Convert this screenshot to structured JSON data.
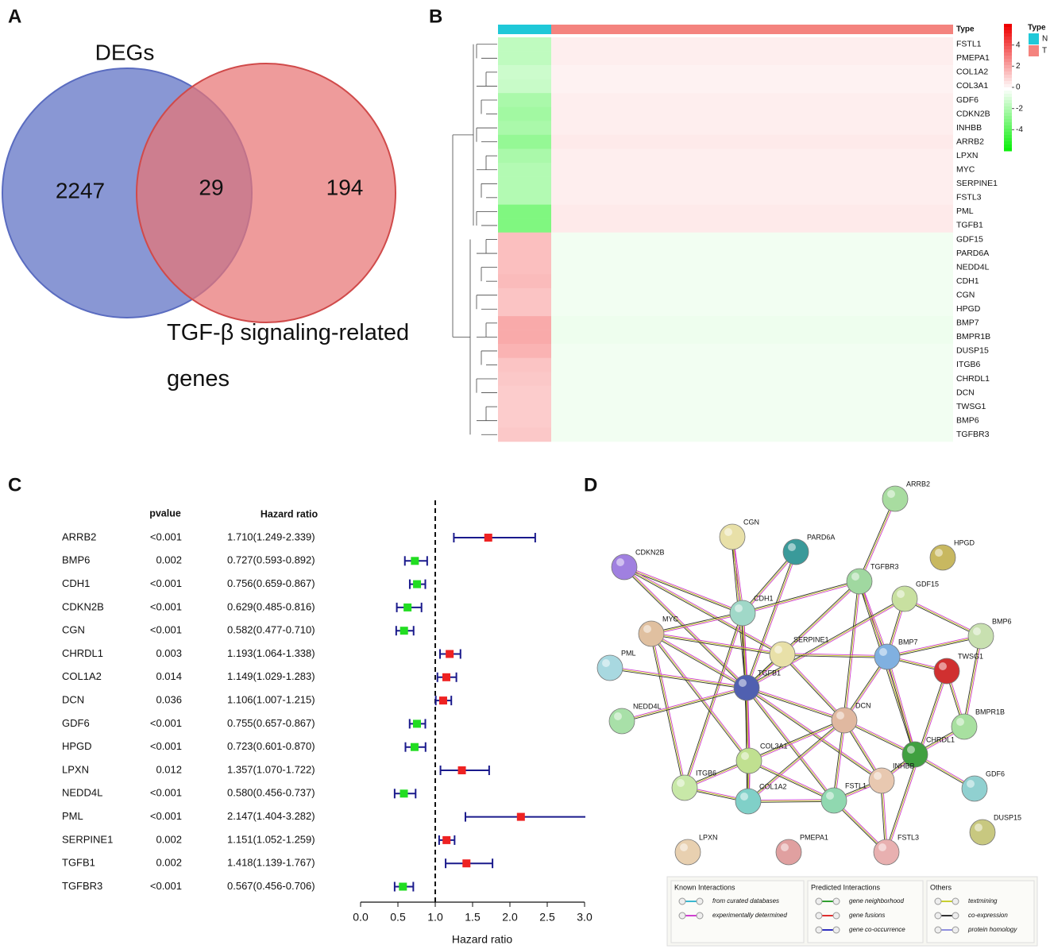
{
  "chart_data": [
    {
      "type": "venn",
      "panel": "A",
      "sets": [
        {
          "name": "DEGs",
          "color": "#7485cc"
        },
        {
          "name": "TGF-β signaling-related genes",
          "color": "#e87474"
        }
      ],
      "values": [
        2247,
        29,
        194
      ]
    },
    {
      "type": "heatmap",
      "panel": "B",
      "annotation": "Type",
      "legend_title": "Type",
      "genes": [
        "FSTL1",
        "PMEPA1",
        "COL1A2",
        "COL3A1",
        "GDF6",
        "CDKN2B",
        "INHBB",
        "ARRB2",
        "LPXN",
        "MYC",
        "SERPINE1",
        "FSTL3",
        "PML",
        "TGFB1",
        "GDF15",
        "PARD6A",
        "NEDD4L",
        "CDH1",
        "CGN",
        "HPGD",
        "BMP7",
        "BMPR1B",
        "DUSP15",
        "ITGB6",
        "CHRDL1",
        "DCN",
        "TWSG1",
        "BMP6",
        "TGFBR3"
      ],
      "series": [
        {
          "name": "N",
          "color": "#1fc8d8",
          "values": [
            -1.5,
            -1.5,
            -1.2,
            -1.3,
            -2.0,
            -2.2,
            -2.0,
            -2.5,
            -2.0,
            -1.8,
            -1.8,
            -1.8,
            -3.0,
            -3.0,
            1.5,
            1.5,
            1.5,
            1.6,
            1.4,
            1.4,
            2.0,
            2.0,
            1.8,
            1.4,
            1.3,
            1.2,
            1.2,
            1.2,
            1.3
          ]
        },
        {
          "name": "T",
          "color": "#f4837e",
          "values": [
            0.4,
            0.4,
            0.3,
            0.3,
            0.4,
            0.4,
            0.4,
            0.5,
            0.4,
            0.4,
            0.4,
            0.4,
            0.5,
            0.5,
            -0.3,
            -0.3,
            -0.3,
            -0.3,
            -0.3,
            -0.3,
            -0.4,
            -0.4,
            -0.3,
            -0.3,
            -0.3,
            -0.3,
            -0.3,
            -0.3,
            -0.3
          ]
        }
      ],
      "clim": [
        -6,
        6
      ],
      "cticks": [
        4,
        2,
        0,
        -2,
        -4
      ],
      "colors": [
        "#00ee00",
        "#ffffff",
        "#ee0000"
      ]
    },
    {
      "type": "forest",
      "panel": "C",
      "pvalue_header": "pvalue",
      "ratio_header": "Hazard ratio",
      "xlabel": "Hazard ratio",
      "categories": [
        "ARRB2",
        "BMP6",
        "CDH1",
        "CDKN2B",
        "CGN",
        "CHRDL1",
        "COL1A2",
        "DCN",
        "GDF6",
        "HPGD",
        "LPXN",
        "NEDD4L",
        "PML",
        "SERPINE1",
        "TGFB1",
        "TGFBR3"
      ],
      "pvalues": [
        "<0.001",
        0.002,
        "<0.001",
        "<0.001",
        "<0.001",
        0.003,
        0.014,
        0.036,
        "<0.001",
        "<0.001",
        0.012,
        "<0.001",
        "<0.001",
        0.002,
        0.002,
        "<0.001"
      ],
      "values": [
        1.71,
        0.727,
        0.756,
        0.629,
        0.582,
        1.193,
        1.149,
        1.106,
        0.755,
        0.723,
        1.357,
        0.58,
        2.147,
        1.151,
        1.418,
        0.567
      ],
      "lower": [
        1.249,
        0.593,
        0.659,
        0.485,
        0.477,
        1.064,
        1.029,
        1.007,
        0.657,
        0.601,
        1.07,
        0.456,
        1.404,
        1.052,
        1.139,
        0.456
      ],
      "upper": [
        2.339,
        0.892,
        0.867,
        0.816,
        0.71,
        1.338,
        1.283,
        1.215,
        0.867,
        0.87,
        1.722,
        0.737,
        3.282,
        1.259,
        1.767,
        0.706
      ],
      "value_labels": [
        "1.710(1.249-2.339)",
        "0.727(0.593-0.892)",
        "0.756(0.659-0.867)",
        "0.629(0.485-0.816)",
        "0.582(0.477-0.710)",
        "1.193(1.064-1.338)",
        "1.149(1.029-1.283)",
        "1.106(1.007-1.215)",
        "0.755(0.657-0.867)",
        "0.723(0.601-0.870)",
        "1.357(1.070-1.722)",
        "0.580(0.456-0.737)",
        "2.147(1.404-3.282)",
        "1.151(1.052-1.259)",
        "1.418(1.139-1.767)",
        "0.567(0.456-0.706)"
      ],
      "xlim": [
        0,
        3
      ],
      "xticks": [
        {
          "value": 0,
          "label": "0.0"
        },
        {
          "value": 0.5,
          "label": "0.5"
        },
        {
          "value": 1,
          "label": "1.0"
        },
        {
          "value": 1.5,
          "label": "1.5"
        },
        {
          "value": 2,
          "label": "2.0"
        },
        {
          "value": 2.5,
          "label": "2.5"
        },
        {
          "value": 3,
          "label": "3.0"
        }
      ],
      "ref_line": 1,
      "color_low": "#22dd22",
      "color_high": "#ee2222",
      "ci_color": "#1a1a8c"
    },
    {
      "type": "network",
      "panel": "D",
      "nodes": [
        "ARRB2",
        "CGN",
        "PARD6A",
        "HPGD",
        "CDKN2B",
        "TGFBR3",
        "GDF15",
        "CDH1",
        "MYC",
        "BMP6",
        "SERPINE1",
        "BMP7",
        "TWSG1",
        "PML",
        "TGFB1",
        "DCN",
        "NEDD4L",
        "BMPR1B",
        "CHRDL1",
        "COL3A1",
        "INHBB",
        "ITGB6",
        "COL1A2",
        "FSTL1",
        "GDF6",
        "DUSP15",
        "LPXN",
        "PMEPA1",
        "FSTL3"
      ],
      "legend": [
        {
          "title": "Known Interactions",
          "items": [
            {
              "name": "from curated databases",
              "color": "#3ab8d0"
            },
            {
              "name": "experimentally determined",
              "color": "#d040d0"
            }
          ]
        },
        {
          "title": "Predicted Interactions",
          "items": [
            {
              "name": "gene neighborhood",
              "color": "#30a030"
            },
            {
              "name": "gene fusions",
              "color": "#e03030"
            },
            {
              "name": "gene co-occurrence",
              "color": "#3030c0"
            }
          ]
        },
        {
          "title": "Others",
          "items": [
            {
              "name": "textmining",
              "color": "#c8d030"
            },
            {
              "name": "co-expression",
              "color": "#333333"
            },
            {
              "name": "protein homology",
              "color": "#9090e0"
            }
          ]
        }
      ]
    }
  ]
}
